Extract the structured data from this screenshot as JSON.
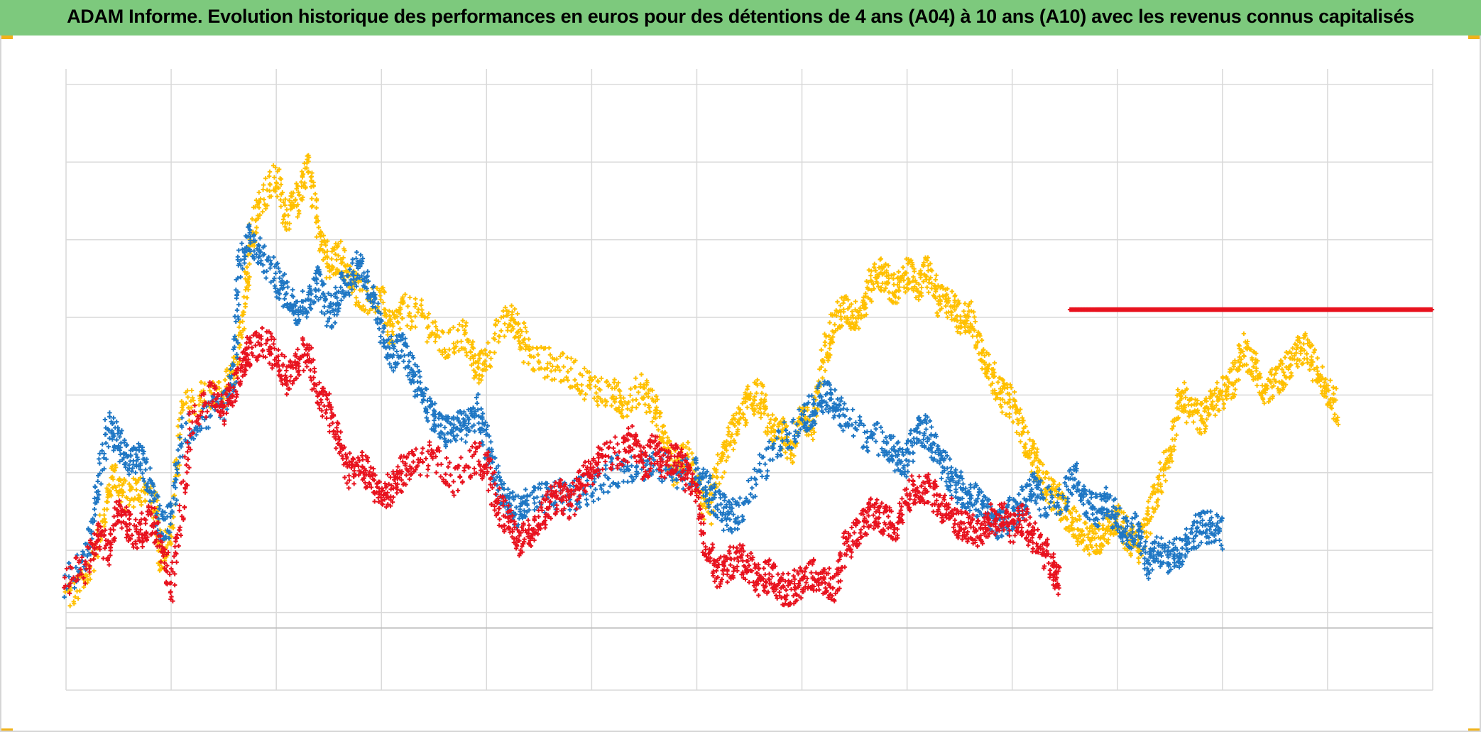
{
  "title": "ADAM Informe. Evolution historique des performances en euros pour des détentions de 4 ans (A04) à 10 ans (A10) avec les revenus connus capitalisés",
  "colors": {
    "title_bar": "#7dc97d",
    "accent_corner": "#f0b21a",
    "grid": "#d9d9d9",
    "axis": "#bfbfbf"
  },
  "chart_data": {
    "type": "scatter",
    "marker": "plus",
    "title": "ADAM Informe. Evolution historique des performances en euros pour des détentions de 4 ans (A04) à 10 ans (A10) avec les revenus connus capitalisés",
    "xlabel": "",
    "ylabel": "",
    "xlim": [
      0,
      13
    ],
    "ylim": [
      -8,
      72
    ],
    "x_gridlines": 13,
    "y_gridlines": [
      -8,
      0,
      2,
      10,
      20,
      30,
      40,
      50,
      60,
      70
    ],
    "zero_line": 0,
    "grid": true,
    "tick_labels_shown": false,
    "legend": "none",
    "series": [
      {
        "name": "yellow",
        "color": "#ffc000",
        "points": [
          [
            0.0,
            4
          ],
          [
            0.2,
            6
          ],
          [
            0.35,
            14
          ],
          [
            0.45,
            20
          ],
          [
            0.55,
            17
          ],
          [
            0.7,
            18
          ],
          [
            0.85,
            16
          ],
          [
            0.9,
            9
          ],
          [
            1.0,
            12
          ],
          [
            1.1,
            28
          ],
          [
            1.3,
            30
          ],
          [
            1.5,
            30
          ],
          [
            1.6,
            33
          ],
          [
            1.7,
            40
          ],
          [
            1.75,
            50
          ],
          [
            1.85,
            55
          ],
          [
            2.0,
            58
          ],
          [
            2.1,
            53
          ],
          [
            2.2,
            55
          ],
          [
            2.3,
            60
          ],
          [
            2.4,
            52
          ],
          [
            2.5,
            46
          ],
          [
            2.6,
            48
          ],
          [
            2.7,
            45
          ],
          [
            2.8,
            43
          ],
          [
            3.0,
            42
          ],
          [
            3.1,
            38
          ],
          [
            3.2,
            41
          ],
          [
            3.4,
            40
          ],
          [
            3.6,
            36
          ],
          [
            3.8,
            38
          ],
          [
            3.9,
            33
          ],
          [
            4.0,
            35
          ],
          [
            4.2,
            40
          ],
          [
            4.3,
            39
          ],
          [
            4.4,
            35
          ],
          [
            4.6,
            34
          ],
          [
            4.8,
            33
          ],
          [
            5.0,
            31
          ],
          [
            5.2,
            30
          ],
          [
            5.3,
            29
          ],
          [
            5.5,
            31
          ],
          [
            5.6,
            28
          ],
          [
            5.7,
            24
          ],
          [
            5.8,
            20
          ],
          [
            5.9,
            22
          ],
          [
            6.0,
            19
          ],
          [
            6.1,
            14
          ],
          [
            6.2,
            20
          ],
          [
            6.3,
            24
          ],
          [
            6.4,
            27
          ],
          [
            6.5,
            29
          ],
          [
            6.6,
            30
          ],
          [
            6.7,
            25
          ],
          [
            6.8,
            26
          ],
          [
            6.9,
            23
          ],
          [
            7.0,
            28
          ],
          [
            7.1,
            25
          ],
          [
            7.2,
            35
          ],
          [
            7.3,
            39
          ],
          [
            7.4,
            41
          ],
          [
            7.5,
            40
          ],
          [
            7.6,
            42
          ],
          [
            7.7,
            46
          ],
          [
            7.8,
            45
          ],
          [
            7.9,
            43
          ],
          [
            8.0,
            46
          ],
          [
            8.1,
            44
          ],
          [
            8.2,
            46
          ],
          [
            8.3,
            42
          ],
          [
            8.4,
            42
          ],
          [
            8.5,
            40
          ],
          [
            8.6,
            40
          ],
          [
            8.7,
            36
          ],
          [
            8.8,
            33
          ],
          [
            8.9,
            30
          ],
          [
            9.0,
            29
          ],
          [
            9.1,
            25
          ],
          [
            9.2,
            22
          ],
          [
            9.3,
            19
          ],
          [
            9.4,
            17
          ],
          [
            9.5,
            15
          ],
          [
            9.6,
            13
          ],
          [
            9.7,
            12
          ],
          [
            9.8,
            11
          ],
          [
            9.9,
            13
          ],
          [
            10.0,
            14
          ],
          [
            10.1,
            12
          ],
          [
            10.2,
            10
          ],
          [
            10.3,
            14
          ],
          [
            10.4,
            19
          ],
          [
            10.5,
            23
          ],
          [
            10.6,
            30
          ],
          [
            10.7,
            28
          ],
          [
            10.8,
            27
          ],
          [
            10.9,
            29
          ],
          [
            11.0,
            30
          ],
          [
            11.1,
            32
          ],
          [
            11.2,
            36
          ],
          [
            11.3,
            34
          ],
          [
            11.4,
            30
          ],
          [
            11.5,
            32
          ],
          [
            11.6,
            33
          ],
          [
            11.7,
            35
          ],
          [
            11.8,
            36
          ],
          [
            11.9,
            33
          ],
          [
            12.0,
            31
          ],
          [
            12.1,
            28
          ]
        ]
      },
      {
        "name": "blue",
        "color": "#1f77c4",
        "points": [
          [
            0.0,
            6
          ],
          [
            0.2,
            9
          ],
          [
            0.3,
            18
          ],
          [
            0.4,
            26
          ],
          [
            0.5,
            24
          ],
          [
            0.6,
            21
          ],
          [
            0.7,
            22
          ],
          [
            0.8,
            19
          ],
          [
            0.9,
            13
          ],
          [
            1.0,
            14
          ],
          [
            1.1,
            25
          ],
          [
            1.3,
            27
          ],
          [
            1.5,
            29
          ],
          [
            1.6,
            33
          ],
          [
            1.65,
            47
          ],
          [
            1.75,
            50
          ],
          [
            1.85,
            48
          ],
          [
            2.0,
            45
          ],
          [
            2.1,
            43
          ],
          [
            2.2,
            41
          ],
          [
            2.3,
            42
          ],
          [
            2.4,
            45
          ],
          [
            2.5,
            40
          ],
          [
            2.6,
            43
          ],
          [
            2.7,
            45
          ],
          [
            2.8,
            47
          ],
          [
            2.9,
            43
          ],
          [
            3.0,
            38
          ],
          [
            3.1,
            35
          ],
          [
            3.2,
            36
          ],
          [
            3.3,
            33
          ],
          [
            3.4,
            30
          ],
          [
            3.5,
            27
          ],
          [
            3.6,
            25
          ],
          [
            3.7,
            26
          ],
          [
            3.8,
            26
          ],
          [
            3.9,
            28
          ],
          [
            4.0,
            24
          ],
          [
            4.1,
            19
          ],
          [
            4.2,
            16
          ],
          [
            4.3,
            15
          ],
          [
            4.4,
            16
          ],
          [
            4.6,
            17
          ],
          [
            4.8,
            17
          ],
          [
            5.0,
            18
          ],
          [
            5.2,
            20
          ],
          [
            5.4,
            21
          ],
          [
            5.6,
            21
          ],
          [
            5.8,
            20
          ],
          [
            6.0,
            20
          ],
          [
            6.1,
            18
          ],
          [
            6.2,
            16
          ],
          [
            6.3,
            14
          ],
          [
            6.4,
            15
          ],
          [
            6.6,
            20
          ],
          [
            6.8,
            24
          ],
          [
            7.0,
            27
          ],
          [
            7.1,
            28
          ],
          [
            7.2,
            30
          ],
          [
            7.3,
            29
          ],
          [
            7.4,
            27
          ],
          [
            7.6,
            25
          ],
          [
            7.8,
            24
          ],
          [
            7.9,
            22
          ],
          [
            8.0,
            21
          ],
          [
            8.1,
            26
          ],
          [
            8.2,
            25
          ],
          [
            8.3,
            22
          ],
          [
            8.4,
            20
          ],
          [
            8.5,
            18
          ],
          [
            8.6,
            17
          ],
          [
            8.7,
            16
          ],
          [
            8.8,
            14
          ],
          [
            8.9,
            13
          ],
          [
            9.0,
            15
          ],
          [
            9.1,
            16
          ],
          [
            9.2,
            18
          ],
          [
            9.3,
            16
          ],
          [
            9.5,
            17
          ],
          [
            9.6,
            20
          ],
          [
            9.7,
            16
          ],
          [
            9.8,
            15
          ],
          [
            9.9,
            16
          ],
          [
            10.0,
            14
          ],
          [
            10.1,
            12
          ],
          [
            10.2,
            13
          ],
          [
            10.3,
            8
          ],
          [
            10.4,
            10
          ],
          [
            10.5,
            9
          ],
          [
            10.6,
            10
          ],
          [
            10.7,
            12
          ],
          [
            10.8,
            13
          ],
          [
            10.9,
            13
          ],
          [
            11.0,
            12
          ]
        ]
      },
      {
        "name": "red",
        "color": "#e8121e",
        "points": [
          [
            0.0,
            6
          ],
          [
            0.2,
            8
          ],
          [
            0.3,
            12
          ],
          [
            0.4,
            10
          ],
          [
            0.5,
            16
          ],
          [
            0.6,
            13
          ],
          [
            0.7,
            12
          ],
          [
            0.8,
            14
          ],
          [
            0.9,
            11
          ],
          [
            1.0,
            5
          ],
          [
            1.1,
            15
          ],
          [
            1.2,
            27
          ],
          [
            1.4,
            30
          ],
          [
            1.5,
            28
          ],
          [
            1.6,
            31
          ],
          [
            1.7,
            35
          ],
          [
            1.75,
            36
          ],
          [
            1.9,
            37
          ],
          [
            2.0,
            35
          ],
          [
            2.1,
            32
          ],
          [
            2.2,
            34
          ],
          [
            2.3,
            36
          ],
          [
            2.4,
            30
          ],
          [
            2.5,
            28
          ],
          [
            2.6,
            24
          ],
          [
            2.7,
            20
          ],
          [
            2.8,
            21
          ],
          [
            2.9,
            19
          ],
          [
            3.0,
            17
          ],
          [
            3.1,
            18
          ],
          [
            3.2,
            20
          ],
          [
            3.3,
            21
          ],
          [
            3.5,
            22
          ],
          [
            3.7,
            19
          ],
          [
            3.9,
            22
          ],
          [
            4.0,
            21
          ],
          [
            4.1,
            16
          ],
          [
            4.2,
            14
          ],
          [
            4.3,
            11
          ],
          [
            4.4,
            12
          ],
          [
            4.5,
            14
          ],
          [
            4.6,
            16
          ],
          [
            4.7,
            17
          ],
          [
            4.8,
            16
          ],
          [
            4.9,
            19
          ],
          [
            5.0,
            20
          ],
          [
            5.1,
            22
          ],
          [
            5.3,
            23
          ],
          [
            5.4,
            24
          ],
          [
            5.5,
            21
          ],
          [
            5.6,
            23
          ],
          [
            5.7,
            21
          ],
          [
            5.8,
            22
          ],
          [
            5.9,
            20
          ],
          [
            6.0,
            17
          ],
          [
            6.1,
            10
          ],
          [
            6.2,
            7
          ],
          [
            6.3,
            8
          ],
          [
            6.4,
            9
          ],
          [
            6.5,
            8
          ],
          [
            6.6,
            6
          ],
          [
            6.7,
            7
          ],
          [
            6.8,
            5
          ],
          [
            6.9,
            5
          ],
          [
            7.0,
            6
          ],
          [
            7.1,
            7
          ],
          [
            7.2,
            6
          ],
          [
            7.3,
            5
          ],
          [
            7.4,
            10
          ],
          [
            7.5,
            12
          ],
          [
            7.6,
            14
          ],
          [
            7.7,
            15
          ],
          [
            7.8,
            14
          ],
          [
            7.9,
            13
          ],
          [
            8.0,
            17
          ],
          [
            8.1,
            18
          ],
          [
            8.2,
            18
          ],
          [
            8.3,
            16
          ],
          [
            8.4,
            15
          ],
          [
            8.5,
            13
          ],
          [
            8.6,
            13
          ],
          [
            8.7,
            12
          ],
          [
            8.8,
            14
          ],
          [
            8.9,
            14
          ],
          [
            9.0,
            13
          ],
          [
            9.1,
            14
          ],
          [
            9.2,
            12
          ],
          [
            9.3,
            10
          ],
          [
            9.4,
            7
          ],
          [
            9.45,
            6
          ]
        ]
      },
      {
        "name": "red-flat",
        "color": "#e8121e",
        "points": [
          [
            9.55,
            41
          ],
          [
            9.8,
            41
          ],
          [
            10.0,
            41
          ],
          [
            10.2,
            41
          ],
          [
            10.4,
            41
          ],
          [
            10.6,
            41
          ],
          [
            10.8,
            41
          ],
          [
            11.0,
            41
          ],
          [
            11.2,
            41
          ],
          [
            11.4,
            41
          ],
          [
            11.6,
            41
          ],
          [
            11.8,
            41
          ],
          [
            12.0,
            41
          ],
          [
            12.2,
            41
          ],
          [
            12.4,
            41
          ],
          [
            12.6,
            41
          ],
          [
            12.8,
            41
          ],
          [
            13.0,
            41
          ]
        ]
      }
    ]
  }
}
